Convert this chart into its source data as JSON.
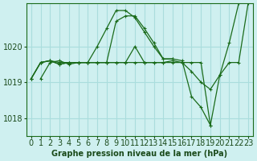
{
  "title": "Graphe pression niveau de la mer (hPa)",
  "bg_color": "#cff0f0",
  "grid_color": "#aadddd",
  "line_color": "#1a6b1a",
  "xlabel_fontsize": 7,
  "ylabel_fontsize": 7,
  "ylim": [
    1017.5,
    1021.2
  ],
  "xlim": [
    -0.5,
    23.5
  ],
  "yticks": [
    1018,
    1019,
    1020
  ],
  "xticks": [
    0,
    1,
    2,
    3,
    4,
    5,
    6,
    7,
    8,
    9,
    10,
    11,
    12,
    13,
    14,
    15,
    16,
    17,
    18,
    19,
    20,
    21,
    22,
    23
  ],
  "series": [
    [
      1019.1,
      1019.55,
      1019.6,
      1019.5,
      1019.55,
      1019.55,
      1019.55,
      1019.55,
      1019.55,
      1019.55,
      1020.0,
      1019.55,
      1019.55,
      1019.55,
      1019.6,
      1019.55,
      1019.55,
      1019.55,
      1017.8,
      1019.2,
      1019.55,
      1019.55,
      1021.2
    ],
    [
      1019.1,
      1019.55,
      1019.6,
      1019.5,
      1019.55,
      1019.55,
      1019.55,
      1020.0,
      1020.5,
      1021.0,
      1021.0,
      1020.8,
      1020.4,
      1020.0,
      1019.65,
      1019.65,
      null,
      null,
      null,
      null,
      null,
      null,
      null
    ],
    [
      1019.1,
      1019.55,
      1019.6,
      1019.5,
      1019.55,
      1019.55,
      1019.55,
      1019.55,
      1019.55,
      1020.7,
      1020.85,
      1020.85,
      1020.5,
      1020.1,
      1019.65,
      1019.65,
      1019.6,
      1018.6,
      1018.3,
      1017.8,
      null,
      null,
      null
    ],
    [
      1019.1,
      1019.55,
      1019.6,
      1019.55,
      1019.55,
      1019.55,
      1019.55,
      1019.55,
      1019.55,
      1019.55,
      1019.55,
      1019.55,
      1019.55,
      1019.55,
      1019.55,
      1019.55,
      1019.55,
      1019.3,
      1019.0,
      1018.8,
      1019.2,
      1020.1,
      1021.2
    ]
  ],
  "series_starts": [
    1,
    0,
    0,
    0
  ]
}
